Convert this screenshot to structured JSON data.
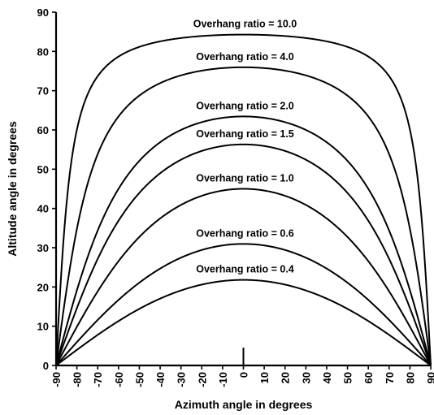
{
  "chart_data": {
    "type": "line",
    "xlabel": "Azimuth angle in degrees",
    "ylabel": "Altitude angle in degrees",
    "xlim": [
      -90,
      90
    ],
    "ylim": [
      0,
      90
    ],
    "x_ticks": [
      -90,
      -80,
      -70,
      -60,
      -50,
      -40,
      -30,
      -20,
      -10,
      0,
      10,
      20,
      30,
      40,
      50,
      60,
      70,
      80,
      90
    ],
    "y_ticks": [
      0,
      10,
      20,
      30,
      40,
      50,
      60,
      70,
      80,
      90
    ],
    "grid": false,
    "x": [
      -90,
      -80,
      -70,
      -60,
      -50,
      -40,
      -30,
      -20,
      -10,
      0,
      10,
      20,
      30,
      40,
      50,
      60,
      70,
      80,
      90
    ],
    "series": [
      {
        "name": "Overhang ratio = 10.0",
        "ratio": 10.0,
        "values": [
          0,
          60.1,
          73.6,
          78.7,
          81.1,
          82.5,
          83.4,
          83.9,
          84.2,
          84.3,
          84.2,
          83.9,
          83.4,
          82.5,
          81.1,
          78.7,
          73.6,
          60.1,
          0
        ]
      },
      {
        "name": "Overhang ratio = 4.0",
        "ratio": 4.0,
        "values": [
          0,
          34.8,
          53.8,
          63.4,
          68.8,
          72.0,
          73.9,
          75.1,
          75.8,
          76.0,
          75.8,
          75.1,
          73.9,
          72.0,
          68.8,
          63.4,
          53.8,
          34.8,
          0
        ]
      },
      {
        "name": "Overhang ratio = 2.0",
        "ratio": 2.0,
        "values": [
          0,
          19.2,
          34.4,
          45.0,
          52.0,
          56.9,
          60.0,
          62.0,
          63.2,
          63.4,
          63.2,
          62.0,
          60.0,
          56.9,
          52.0,
          45.0,
          34.4,
          19.2,
          0
        ]
      },
      {
        "name": "Overhang ratio = 1.5",
        "ratio": 1.5,
        "values": [
          0,
          14.6,
          27.2,
          37.0,
          44.1,
          49.1,
          52.6,
          54.8,
          56.1,
          56.3,
          56.1,
          54.8,
          52.6,
          49.1,
          44.1,
          37.0,
          27.2,
          14.6,
          0
        ]
      },
      {
        "name": "Overhang ratio = 1.0",
        "ratio": 1.0,
        "values": [
          0,
          9.9,
          18.9,
          26.6,
          32.7,
          37.5,
          40.9,
          43.2,
          44.6,
          45.0,
          44.6,
          43.2,
          40.9,
          37.5,
          32.7,
          26.6,
          18.9,
          9.9,
          0
        ]
      },
      {
        "name": "Overhang ratio = 0.6",
        "ratio": 0.6,
        "values": [
          0,
          6.0,
          11.6,
          16.7,
          21.1,
          24.7,
          27.5,
          29.4,
          30.6,
          31.0,
          30.6,
          29.4,
          27.5,
          24.7,
          21.1,
          16.7,
          11.6,
          6.0,
          0
        ]
      },
      {
        "name": "Overhang ratio = 0.4",
        "ratio": 0.4,
        "values": [
          0,
          4.0,
          7.8,
          11.3,
          14.4,
          17.0,
          19.1,
          20.6,
          21.5,
          21.8,
          21.5,
          20.6,
          19.1,
          17.0,
          14.4,
          11.3,
          7.8,
          4.0,
          0
        ]
      }
    ]
  }
}
